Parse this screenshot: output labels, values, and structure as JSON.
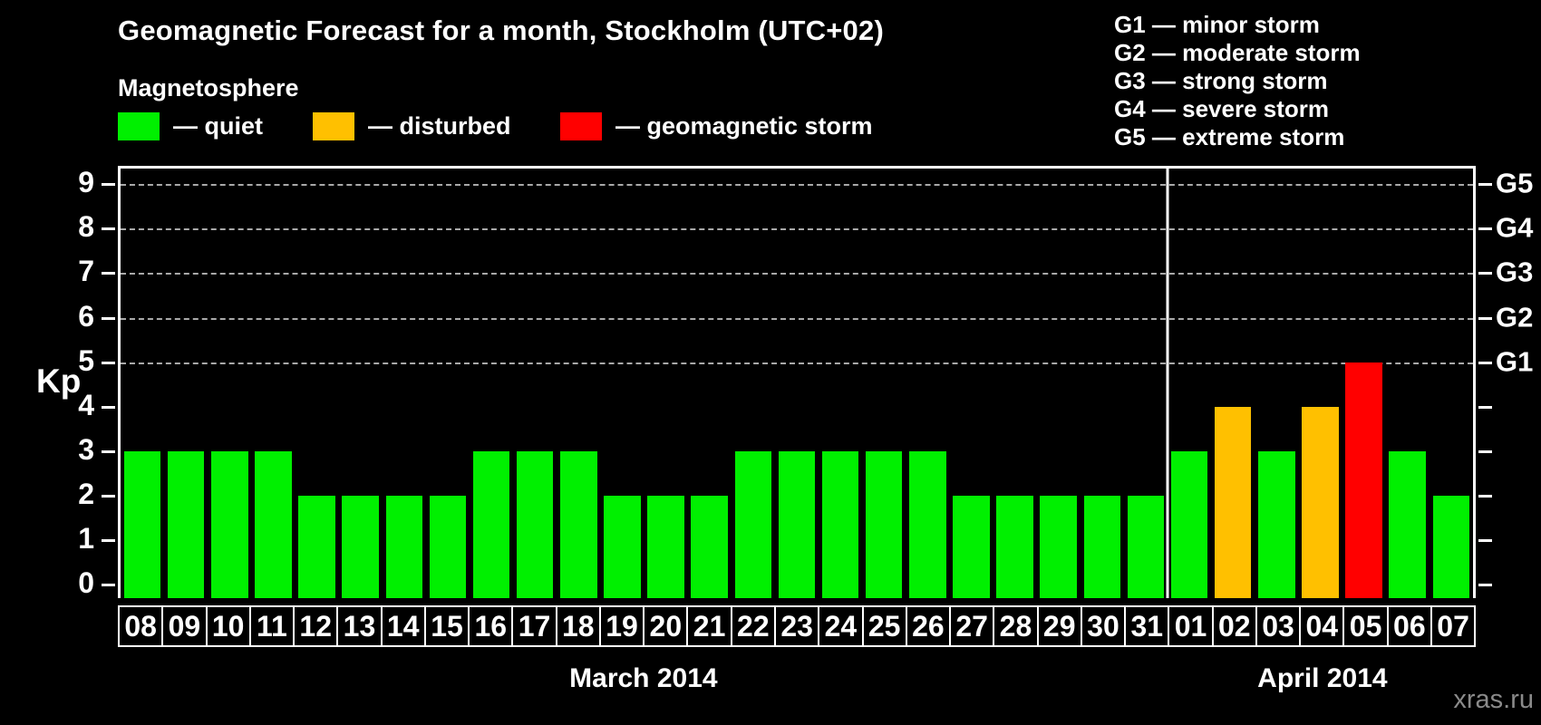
{
  "title": "Geomagnetic Forecast for a month, Stockholm (UTC+02)",
  "magnetosphere_legend": {
    "heading": "Magnetosphere",
    "items": [
      {
        "name": "quiet",
        "label": "— quiet",
        "color": "#00f000"
      },
      {
        "name": "disturbed",
        "label": "— disturbed",
        "color": "#ffc000"
      },
      {
        "name": "storm",
        "label": "— geomagnetic storm",
        "color": "#ff0000"
      }
    ]
  },
  "storm_scale_legend": {
    "items": [
      "G1 — minor storm",
      "G2 — moderate storm",
      "G3 — strong storm",
      "G4 — severe storm",
      "G5 — extreme storm"
    ]
  },
  "y_axis": {
    "label": "Kp"
  },
  "watermark": "xras.ru",
  "chart_data": {
    "type": "bar",
    "title": "Geomagnetic Forecast for a month, Stockholm (UTC+02)",
    "xlabel": "",
    "ylabel": "Kp",
    "ylim": [
      0,
      9
    ],
    "ylim_display": [
      -0.3,
      9.35
    ],
    "yticks": [
      0,
      1,
      2,
      3,
      4,
      5,
      6,
      7,
      8,
      9
    ],
    "gridlines": [
      5,
      6,
      7,
      8,
      9
    ],
    "grid_style": "dashed",
    "legend_position": "top-left",
    "right_axis_labels": [
      {
        "kp": 5,
        "text": "G1"
      },
      {
        "kp": 6,
        "text": "G2"
      },
      {
        "kp": 7,
        "text": "G3"
      },
      {
        "kp": 8,
        "text": "G4"
      },
      {
        "kp": 9,
        "text": "G5"
      }
    ],
    "categories": [
      "08",
      "09",
      "10",
      "11",
      "12",
      "13",
      "14",
      "15",
      "16",
      "17",
      "18",
      "19",
      "20",
      "21",
      "22",
      "23",
      "24",
      "25",
      "26",
      "27",
      "28",
      "29",
      "30",
      "31",
      "01",
      "02",
      "03",
      "04",
      "05",
      "06",
      "07"
    ],
    "series": [
      {
        "name": "Kp forecast",
        "values": [
          3,
          3,
          3,
          3,
          2,
          2,
          2,
          2,
          3,
          3,
          3,
          2,
          2,
          2,
          3,
          3,
          3,
          3,
          3,
          2,
          2,
          2,
          2,
          2,
          3,
          4,
          3,
          4,
          5,
          3,
          2
        ]
      }
    ],
    "levels": [
      "quiet",
      "quiet",
      "quiet",
      "quiet",
      "quiet",
      "quiet",
      "quiet",
      "quiet",
      "quiet",
      "quiet",
      "quiet",
      "quiet",
      "quiet",
      "quiet",
      "quiet",
      "quiet",
      "quiet",
      "quiet",
      "quiet",
      "quiet",
      "quiet",
      "quiet",
      "quiet",
      "quiet",
      "quiet",
      "disturbed",
      "quiet",
      "disturbed",
      "storm",
      "quiet",
      "quiet"
    ],
    "level_colors": {
      "quiet": "#00f000",
      "disturbed": "#ffc000",
      "storm": "#ff0000"
    },
    "months": [
      {
        "label": "March 2014",
        "days": 24
      },
      {
        "label": "April 2014",
        "days": 7
      }
    ]
  }
}
